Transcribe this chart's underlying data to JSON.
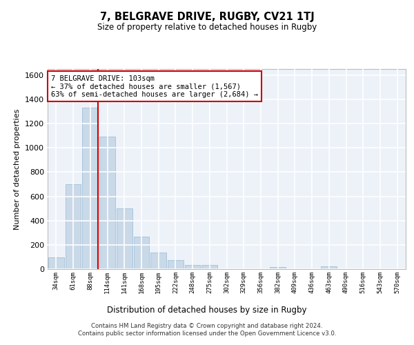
{
  "title": "7, BELGRAVE DRIVE, RUGBY, CV21 1TJ",
  "subtitle": "Size of property relative to detached houses in Rugby",
  "xlabel": "Distribution of detached houses by size in Rugby",
  "ylabel": "Number of detached properties",
  "bar_color": "#c9d9e8",
  "bar_edge_color": "#a8c4dc",
  "line_color": "#cc0000",
  "background_color": "#edf2f9",
  "categories": [
    "34sqm",
    "61sqm",
    "88sqm",
    "114sqm",
    "141sqm",
    "168sqm",
    "195sqm",
    "222sqm",
    "248sqm",
    "275sqm",
    "302sqm",
    "329sqm",
    "356sqm",
    "382sqm",
    "409sqm",
    "436sqm",
    "463sqm",
    "490sqm",
    "516sqm",
    "543sqm",
    "570sqm"
  ],
  "values": [
    95,
    700,
    1330,
    1090,
    500,
    270,
    135,
    72,
    35,
    35,
    0,
    0,
    0,
    15,
    0,
    0,
    20,
    0,
    0,
    0,
    0
  ],
  "ylim": [
    0,
    1650
  ],
  "yticks": [
    0,
    200,
    400,
    600,
    800,
    1000,
    1200,
    1400,
    1600
  ],
  "property_bin_index": 2,
  "annotation_text": "7 BELGRAVE DRIVE: 103sqm\n← 37% of detached houses are smaller (1,567)\n63% of semi-detached houses are larger (2,684) →",
  "footer_line1": "Contains HM Land Registry data © Crown copyright and database right 2024.",
  "footer_line2": "Contains public sector information licensed under the Open Government Licence v3.0."
}
